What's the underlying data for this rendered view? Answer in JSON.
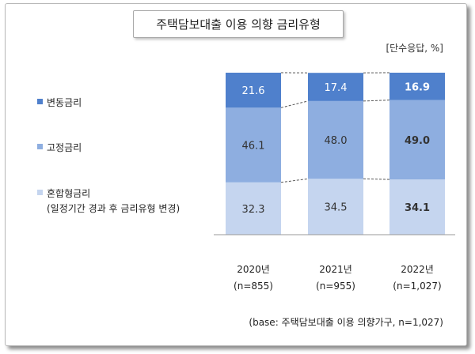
{
  "title": "주택담보대출 이용 의향 금리유형",
  "unit_note": "[단수응답, %]",
  "base_note": "(base: 주택담보대출 이용 의향가구, n=1,027)",
  "chart_data": {
    "type": "bar",
    "stacked": true,
    "categories": [
      "2020년",
      "2021년",
      "2022년"
    ],
    "category_subtitles": [
      "(n=855)",
      "(n=955)",
      "(n=1,027)"
    ],
    "series": [
      {
        "name": "혼합형금리",
        "name_line2": "(일정기간 경과 후 금리유형 변경)",
        "values": [
          32.3,
          34.5,
          34.1
        ],
        "color": "#c5d5ef"
      },
      {
        "name": "고정금리",
        "values": [
          46.1,
          48.0,
          49.0
        ],
        "color": "#8eaee0"
      },
      {
        "name": "변동금리",
        "values": [
          21.6,
          17.4,
          16.9
        ],
        "color": "#4f80cc"
      }
    ],
    "value_labels": [
      [
        "32.3",
        "34.5",
        "34.1"
      ],
      [
        "46.1",
        "48.0",
        "49.0"
      ],
      [
        "21.6",
        "17.4",
        "16.9"
      ]
    ],
    "bold_category_index": 2,
    "legend_order_top_to_bottom": [
      "변동금리",
      "고정금리",
      "혼합형금리"
    ],
    "legend_placement": "left",
    "ylim": [
      0,
      100
    ],
    "grid": false
  }
}
